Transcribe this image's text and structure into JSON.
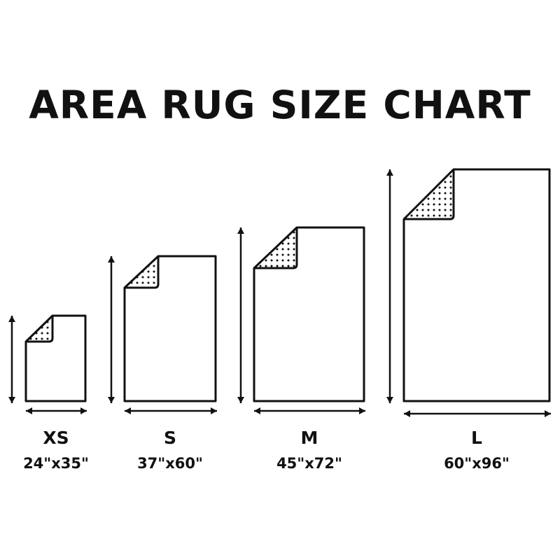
{
  "title": "AREA RUG SIZE CHART",
  "sizes": [
    {
      "label": "XS",
      "dimensions": "24\"x35\"",
      "width_in": 24,
      "length_in": 35
    },
    {
      "label": "S",
      "dimensions": "37\"x60\"",
      "width_in": 37,
      "length_in": 60
    },
    {
      "label": "M",
      "dimensions": "45\"x72\"",
      "width_in": 45,
      "length_in": 72
    },
    {
      "label": "L",
      "dimensions": "60\"x96\"",
      "width_in": 60,
      "length_in": 96
    }
  ],
  "colors": {
    "ink": "#111111",
    "background": "#ffffff"
  }
}
